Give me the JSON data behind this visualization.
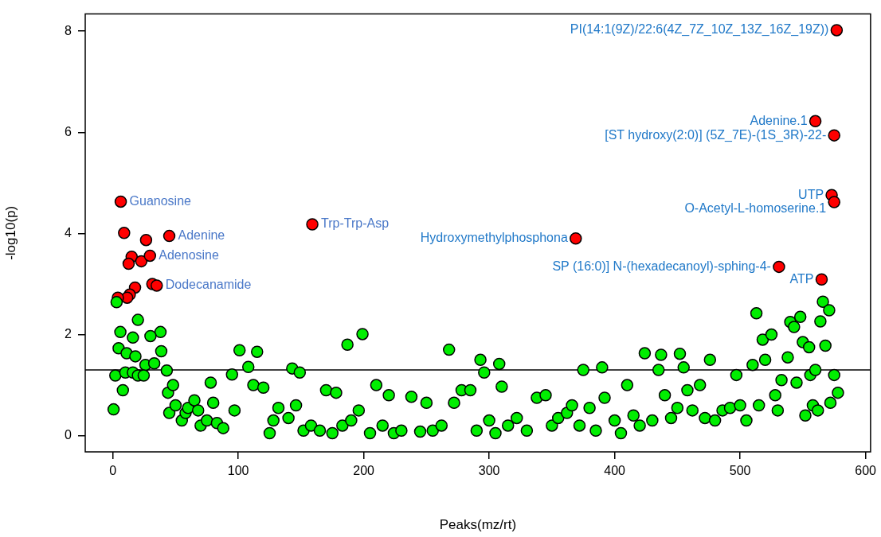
{
  "chart_data": {
    "type": "scatter",
    "xlabel": "Peaks(mz/rt)",
    "ylabel": "-log10(p)",
    "xlim": [
      -22,
      604
    ],
    "ylim": [
      -0.32,
      8.34
    ],
    "xticks": [
      0,
      100,
      200,
      300,
      400,
      500,
      600
    ],
    "yticks": [
      0,
      2,
      4,
      6,
      8
    ],
    "marker": "circle",
    "series": [
      {
        "color": "#00ee00",
        "x": [
          3,
          20,
          6,
          38,
          16,
          30,
          4.6,
          11,
          18,
          38.6,
          26,
          33,
          43,
          2,
          10,
          16,
          20,
          24.6,
          8,
          0.6,
          44,
          45,
          48,
          50,
          55,
          58,
          60,
          65,
          68,
          70,
          75,
          78,
          80,
          83,
          88,
          95,
          97,
          101,
          108,
          115,
          112,
          120,
          125,
          128,
          132,
          140,
          143,
          146,
          149,
          152,
          158,
          165,
          170,
          175,
          178,
          183,
          187,
          190,
          196,
          199,
          205,
          210,
          215,
          220,
          224,
          230,
          238,
          245,
          250,
          255,
          262,
          268,
          272,
          278,
          285,
          290,
          293,
          296,
          300,
          305,
          308,
          310,
          315,
          322,
          330,
          338,
          345,
          350,
          355,
          362,
          366,
          372,
          375,
          380,
          385,
          390,
          392,
          400,
          405,
          410,
          415,
          420,
          424,
          430,
          435,
          437,
          440,
          445,
          450,
          452,
          455,
          458,
          462,
          468,
          472,
          476,
          480,
          486,
          492,
          497,
          500,
          505,
          510,
          515,
          513,
          518,
          520,
          525,
          528,
          530,
          533,
          538,
          540,
          543,
          545,
          548,
          550,
          552,
          555,
          556,
          558,
          560,
          562,
          564,
          566,
          568,
          571,
          572,
          575,
          578
        ],
        "values": [
          2.64,
          2.29,
          2.05,
          2.05,
          1.94,
          1.97,
          1.73,
          1.63,
          1.57,
          1.67,
          1.4,
          1.43,
          1.29,
          1.19,
          1.25,
          1.25,
          1.19,
          1.19,
          0.9,
          0.52,
          0.85,
          0.45,
          1.0,
          0.6,
          0.3,
          0.45,
          0.55,
          0.7,
          0.5,
          0.2,
          0.3,
          1.05,
          0.65,
          0.25,
          0.15,
          1.21,
          0.5,
          1.69,
          1.36,
          1.66,
          1.0,
          0.95,
          0.05,
          0.3,
          0.55,
          0.35,
          1.33,
          0.6,
          1.25,
          0.1,
          0.2,
          0.1,
          0.9,
          0.05,
          0.85,
          0.2,
          1.8,
          0.3,
          0.5,
          2.01,
          0.05,
          1.0,
          0.2,
          0.8,
          0.05,
          0.1,
          0.77,
          0.08,
          0.65,
          0.1,
          0.2,
          1.7,
          0.65,
          0.9,
          0.9,
          0.1,
          1.5,
          1.25,
          0.3,
          0.05,
          1.42,
          0.97,
          0.2,
          0.35,
          0.1,
          0.75,
          0.8,
          0.2,
          0.35,
          0.45,
          0.6,
          0.2,
          1.3,
          0.55,
          0.1,
          1.35,
          0.75,
          0.3,
          0.05,
          1.0,
          0.4,
          0.2,
          1.63,
          0.3,
          1.3,
          1.6,
          0.8,
          0.35,
          0.55,
          1.62,
          1.35,
          0.9,
          0.5,
          1.0,
          0.35,
          1.5,
          0.3,
          0.5,
          0.55,
          1.2,
          0.6,
          0.3,
          1.4,
          0.6,
          2.42,
          1.9,
          1.5,
          2.0,
          0.8,
          0.5,
          1.1,
          1.55,
          2.25,
          2.15,
          1.05,
          2.35,
          1.85,
          0.4,
          1.75,
          1.2,
          0.6,
          1.3,
          0.5,
          2.26,
          2.65,
          1.78,
          2.48,
          0.65,
          1.2,
          0.85
        ]
      },
      {
        "color": "#ff0000",
        "x": [
          6.3,
          9,
          26.5,
          45,
          15,
          12.6,
          22.7,
          29.6,
          17.7,
          13.5,
          11.4,
          4,
          31.5,
          35,
          159,
          369,
          531,
          565,
          573,
          575,
          560,
          575,
          577
        ],
        "values": [
          4.63,
          4.01,
          3.87,
          3.95,
          3.54,
          3.4,
          3.45,
          3.56,
          2.93,
          2.79,
          2.73,
          2.73,
          3.0,
          2.97,
          4.18,
          3.9,
          3.34,
          3.09,
          4.76,
          4.62,
          6.22,
          5.94,
          8.02
        ]
      }
    ],
    "ref_lines": [
      {
        "axis": "y",
        "value": 1.3,
        "color": "#000000"
      }
    ],
    "annotations": [
      {
        "text": "Guanosine",
        "x": 6.3,
        "y": 4.63
      },
      {
        "text": "Adenine",
        "x": 45,
        "y": 3.95
      },
      {
        "text": "Adenosine",
        "x": 29.6,
        "y": 3.56
      },
      {
        "text": "Dodecanamide",
        "x": 35,
        "y": 2.97
      },
      {
        "text": "Trp-Trp-Asp",
        "x": 159,
        "y": 4.18
      },
      {
        "text": "Hydroxymethylphosphona",
        "x": 369,
        "y": 3.9
      },
      {
        "text": "SP (16:0)] N-(hexadecanoyl)-sphing-4-",
        "x": 531,
        "y": 3.34
      },
      {
        "text": "ATP",
        "x": 565,
        "y": 3.09
      },
      {
        "text": "UTP",
        "x": 573,
        "y": 4.76
      },
      {
        "text": "O-Acetyl-L-homoserine.1",
        "x": 575,
        "y": 4.62
      },
      {
        "text": "Adenine.1",
        "x": 560,
        "y": 6.22
      },
      {
        "text": "[ST hydroxy(2:0)] (5Z_7E)-(1S_3R)-22-",
        "x": 575,
        "y": 5.94
      },
      {
        "text": "PI(14:1(9Z)/22:6(4Z_7Z_10Z_13Z_16Z_19Z))",
        "x": 577,
        "y": 8.02
      }
    ]
  }
}
